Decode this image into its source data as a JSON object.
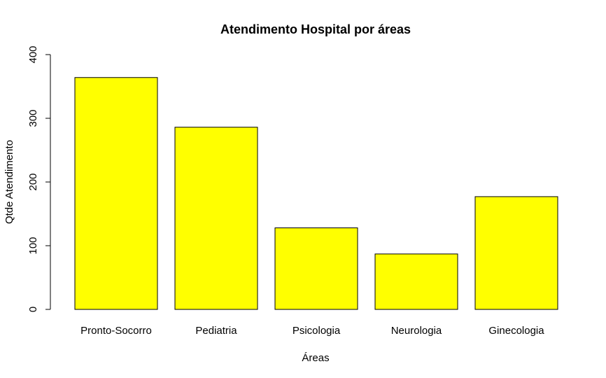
{
  "chart_data": {
    "type": "bar",
    "title": "Atendimento Hospital por áreas",
    "xlabel": "Áreas",
    "ylabel": "Qtde Atendimento",
    "categories": [
      "Pronto-Socorro",
      "Pediatria",
      "Psicologia",
      "Neurologia",
      "Ginecologia"
    ],
    "values": [
      364,
      286,
      128,
      87,
      177
    ],
    "ylim": [
      0,
      400
    ],
    "yticks": [
      "0",
      "100",
      "200",
      "300",
      "400"
    ],
    "bar_color": "#FFFF00",
    "bar_border_color": "#000000",
    "grid": false,
    "legend": "none"
  }
}
